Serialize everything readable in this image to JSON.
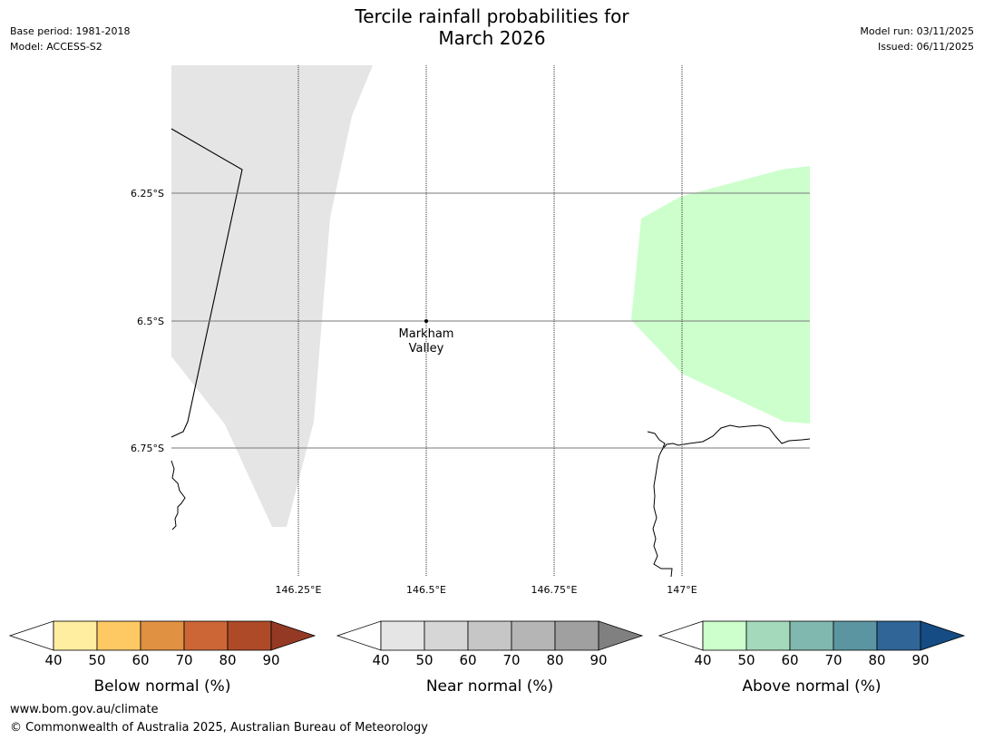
{
  "title": {
    "line1": "Tercile rainfall probabilities for",
    "line2": "March 2026"
  },
  "meta_left": {
    "base_period": "Base period: 1981-2018",
    "model": "Model: ACCESS-S2"
  },
  "meta_right": {
    "model_run": "Model run: 03/11/2025",
    "issued": "Issued: 06/11/2025"
  },
  "map": {
    "lat_labels": [
      "6.25°S",
      "6.5°S",
      "6.75°S"
    ],
    "lon_labels": [
      "146.25°E",
      "146.5°E",
      "146.75°E",
      "147°E"
    ],
    "place": {
      "name_line1": "Markham",
      "name_line2": "Valley",
      "lon": 146.5,
      "lat": -6.5
    },
    "regions": [
      {
        "category": "near_normal",
        "range": "40-50",
        "color": "#e5e5e5"
      },
      {
        "category": "above_normal",
        "range": "40-50",
        "color": "#ccffcc"
      }
    ]
  },
  "legends": [
    {
      "label": "Below normal (%)",
      "ticks": [
        "40",
        "50",
        "60",
        "70",
        "80",
        "90"
      ],
      "colors": [
        "#ffffff",
        "#ffeda0",
        "#fec963",
        "#e09142",
        "#cc6636",
        "#ae4a28",
        "#943a24"
      ]
    },
    {
      "label": "Near normal (%)",
      "ticks": [
        "40",
        "50",
        "60",
        "70",
        "80",
        "90"
      ],
      "colors": [
        "#ffffff",
        "#e5e5e5",
        "#d6d6d6",
        "#c6c6c6",
        "#b5b5b5",
        "#a0a0a0",
        "#808080"
      ]
    },
    {
      "label": "Above normal (%)",
      "ticks": [
        "40",
        "50",
        "60",
        "70",
        "80",
        "90"
      ],
      "colors": [
        "#ffffff",
        "#ccffcc",
        "#a4d9bb",
        "#80b7ae",
        "#5b95a1",
        "#2f6597",
        "#144c83"
      ]
    }
  ],
  "footer": {
    "url": "www.bom.gov.au/climate",
    "copyright": "© Commonwealth of Australia 2025, Australian Bureau of Meteorology"
  }
}
